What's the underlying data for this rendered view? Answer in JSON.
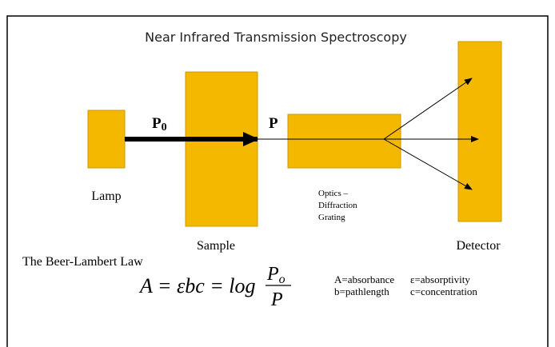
{
  "title": "Near Infrared Transmission Spectroscopy",
  "labels": {
    "lamp": "Lamp",
    "sample": "Sample",
    "optics": [
      "Optics –",
      "Diffraction",
      "Grating"
    ],
    "detector": "Detector"
  },
  "beams": {
    "incident": {
      "main": "P",
      "sub": "0"
    },
    "transmitted": "P"
  },
  "law": {
    "title": "The Beer-Lambert Law",
    "lhs": "A = εbc = log",
    "numerator": {
      "main": "P",
      "sub": "o"
    },
    "denominator": "P"
  },
  "legend": [
    [
      "A=absorbance",
      "ε=absorptivity"
    ],
    [
      "b=pathlength",
      "c=concentration"
    ]
  ]
}
